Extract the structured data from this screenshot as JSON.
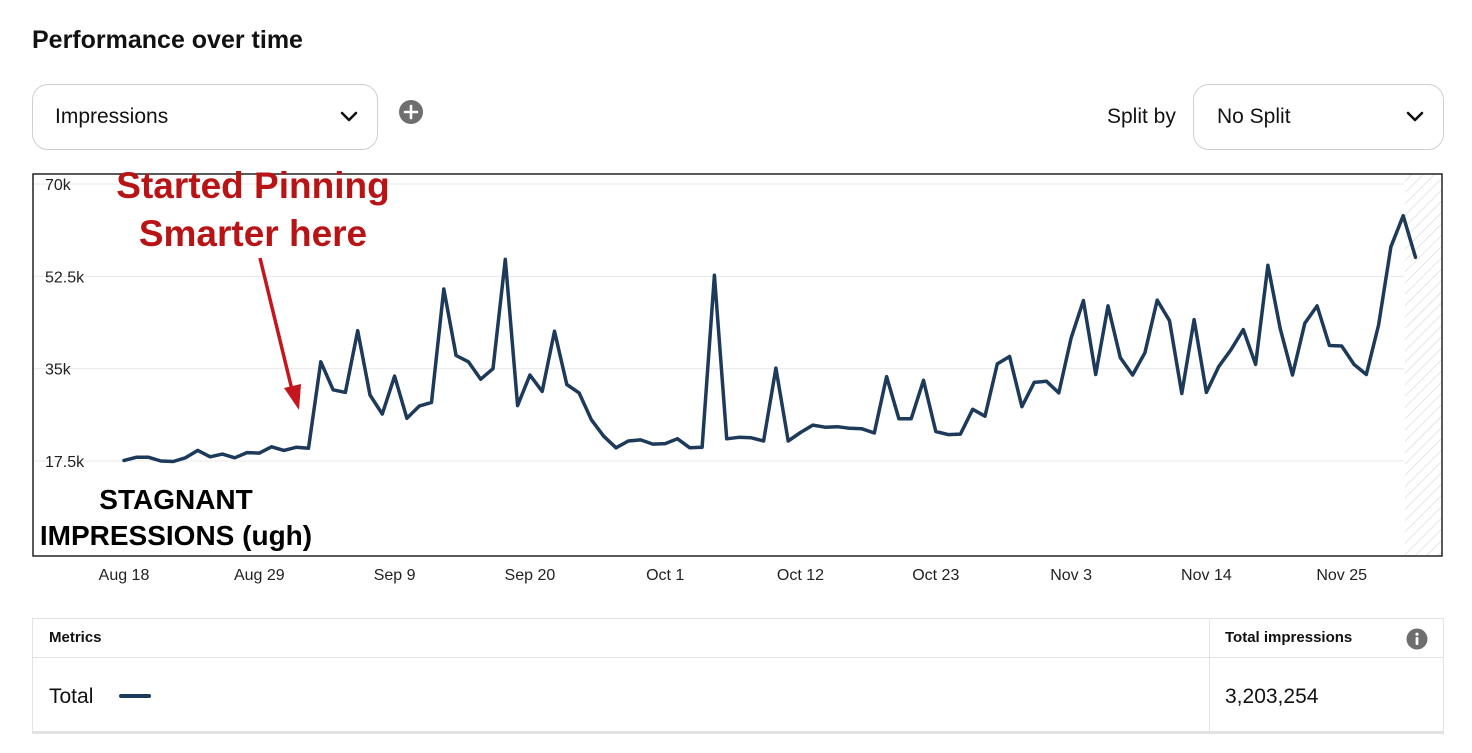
{
  "page_title": "Performance over time",
  "metric_select": {
    "value": "Impressions"
  },
  "split": {
    "label": "Split by",
    "value": "No Split"
  },
  "icons": {
    "add": "plus-circle-icon",
    "chevron": "chevron-down-icon",
    "info": "info-icon"
  },
  "annotation": {
    "line1": "Started Pinning",
    "line2": "Smarter here",
    "color": "#b81416"
  },
  "stagnant_label": {
    "line1": "STAGNANT",
    "line2": "IMPRESSIONS (ugh)"
  },
  "chart_data": {
    "type": "line",
    "x_ticks": [
      "Aug 18",
      "Aug 29",
      "Sep 9",
      "Sep 20",
      "Oct 1",
      "Oct 12",
      "Oct 23",
      "Nov 3",
      "Nov 14",
      "Nov 25"
    ],
    "y_ticks": [
      "70k",
      "52.5k",
      "35k",
      "17.5k"
    ],
    "ylim": [
      17500,
      70000
    ],
    "grid": true,
    "line_color": "#1d3a5a",
    "series": [
      {
        "values": [
          17600,
          18200,
          18200,
          17500,
          17400,
          18100,
          19500,
          18300,
          18800,
          18100,
          19100,
          19000,
          20200,
          19500,
          20100,
          19900,
          36300,
          31000,
          30500,
          42200,
          30000,
          26400,
          33600,
          25600,
          27900,
          28600,
          50100,
          37500,
          36300,
          33000,
          35000,
          55700,
          28000,
          33800,
          30700,
          42100,
          32000,
          30400,
          25300,
          22200,
          20000,
          21300,
          21500,
          20700,
          20800,
          21700,
          20000,
          20100,
          52700,
          21700,
          22000,
          21900,
          21300,
          35100,
          21300,
          22900,
          24300,
          23900,
          24000,
          23700,
          23600,
          22800,
          33500,
          25500,
          25500,
          32800,
          23100,
          22500,
          22600,
          27300,
          26000,
          35900,
          37300,
          27800,
          32400,
          32600,
          30400,
          40800,
          47900,
          33900,
          46900,
          37100,
          33800,
          38000,
          48000,
          44100,
          30300,
          44300,
          30500,
          35400,
          38600,
          42400,
          35800,
          54600,
          42600,
          33800,
          43600,
          46900,
          39400,
          39300,
          35800,
          33900,
          43300,
          58100,
          64000,
          56100
        ]
      }
    ]
  },
  "table": {
    "col_metrics": "Metrics",
    "col_total": "Total impressions",
    "row_label": "Total",
    "row_value": "3,203,254"
  }
}
